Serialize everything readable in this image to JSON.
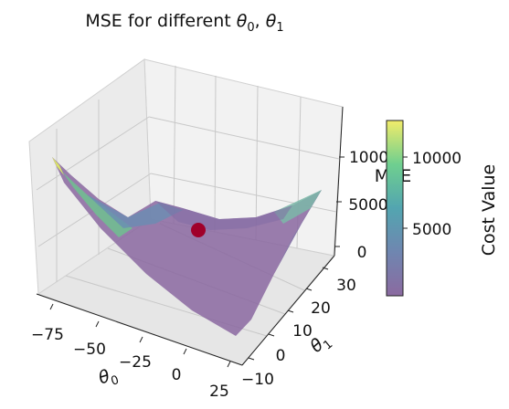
{
  "chart_data": {
    "type": "surface3d",
    "title": "MSE for different θ0, θ1",
    "title_parts": {
      "prefix": "MSE for different ",
      "theta": "θ",
      "sub0": "0",
      "sep": ", ",
      "sub1": "1"
    },
    "x_axis": {
      "label": "θ",
      "label_sub": "0",
      "ticks": [
        "−75",
        "−50",
        "−25",
        "0",
        "25"
      ],
      "tick_values": [
        -75,
        -50,
        -25,
        0,
        25
      ],
      "range": [
        -90,
        25
      ]
    },
    "y_axis": {
      "label": "θ",
      "label_sub": "1",
      "ticks": [
        "−10",
        "0",
        "10",
        "20",
        "30"
      ],
      "tick_values": [
        -10,
        0,
        10,
        20,
        30
      ],
      "range": [
        -10,
        35
      ]
    },
    "z_axis": {
      "label": "MSE",
      "ticks": [
        "0",
        "5000",
        "10000"
      ],
      "tick_values": [
        0,
        5000,
        10000
      ],
      "range": [
        0,
        14000
      ]
    },
    "surface": {
      "description": "MSE surface over grid of theta0, theta1",
      "min_theta": [
        -30,
        10
      ],
      "approx_corner_values": [
        {
          "theta0": -90,
          "theta1": -10,
          "mse": 12500
        },
        {
          "theta0": 25,
          "theta1": -10,
          "mse": 600
        },
        {
          "theta0": 25,
          "theta1": 35,
          "mse": 7000
        },
        {
          "theta0": -90,
          "theta1": 35,
          "mse": 2500
        }
      ],
      "colormap": "viridis",
      "alpha": 0.6
    },
    "minimum_point": {
      "theta0": -30,
      "theta1": 10,
      "mse": 700,
      "color": "#a0002a"
    },
    "colorbar": {
      "label": "Cost Value",
      "ticks": [
        "5000",
        "10000"
      ],
      "tick_values": [
        5000,
        10000
      ],
      "range": [
        0,
        12500
      ]
    }
  }
}
